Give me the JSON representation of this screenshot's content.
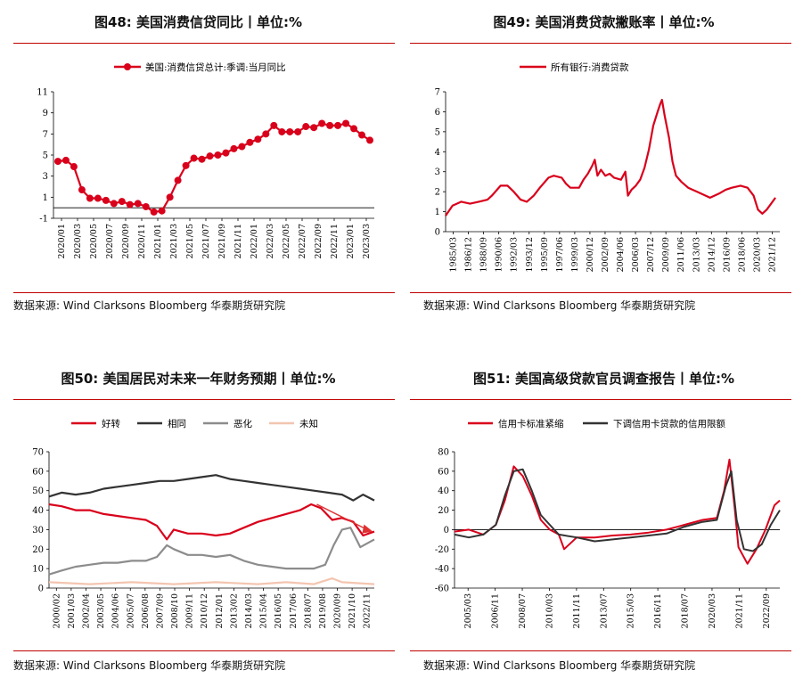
{
  "source_prefix": "数据来源:",
  "source_text": "Wind Clarksons Bloomberg 华泰期货研究院",
  "chart_data": [
    {
      "id": "fig48",
      "type": "line",
      "title": "图48:  美国消费信贷同比丨单位:%",
      "ylim": [
        -1,
        11
      ],
      "yticks": [
        -1,
        1,
        3,
        5,
        7,
        9,
        11
      ],
      "xticks": [
        "2020/01",
        "2020/03",
        "2020/05",
        "2020/07",
        "2020/09",
        "2020/11",
        "2021/01",
        "2021/03",
        "2021/05",
        "2021/07",
        "2021/09",
        "2021/11",
        "2022/01",
        "2022/03",
        "2022/05",
        "2022/07",
        "2022/09",
        "2022/11",
        "2023/01",
        "2023/03"
      ],
      "series": [
        {
          "name": "美国:消费信贷总计:季调:当月同比",
          "color": "#d9001b",
          "values": [
            4.4,
            4.5,
            3.9,
            1.7,
            0.9,
            0.9,
            0.7,
            0.4,
            0.6,
            0.3,
            0.4,
            0.1,
            -0.4,
            -0.3,
            1.0,
            2.6,
            4.0,
            4.7,
            4.6,
            4.9,
            5.0,
            5.2,
            5.6,
            5.8,
            6.2,
            6.5,
            7.0,
            7.8,
            7.2,
            7.2,
            7.2,
            7.7,
            7.6,
            8.0,
            7.8,
            7.8,
            8.0,
            7.5,
            6.9,
            6.4
          ]
        }
      ]
    },
    {
      "id": "fig49",
      "type": "line",
      "title": "图49:  美国消费贷款撇账率丨单位:%",
      "ylim": [
        0,
        7
      ],
      "yticks": [
        0,
        1,
        2,
        3,
        4,
        5,
        6,
        7
      ],
      "xticks": [
        "1985/03",
        "1986/12",
        "1988/09",
        "1990/06",
        "1992/03",
        "1993/12",
        "1995/09",
        "1997/06",
        "1999/03",
        "2000/12",
        "2002/09",
        "2004/06",
        "2006/03",
        "2007/12",
        "2009/09",
        "2011/06",
        "2013/03",
        "2014/12",
        "2016/09",
        "2018/06",
        "2020/03",
        "2021/12"
      ],
      "x_start": 1985.2,
      "x_end": 2023.5,
      "series": [
        {
          "name": "所有银行:消费贷款",
          "color": "#d9001b",
          "points": [
            [
              1985.2,
              0.8
            ],
            [
              1986.0,
              1.3
            ],
            [
              1987.0,
              1.5
            ],
            [
              1988.0,
              1.4
            ],
            [
              1989.0,
              1.5
            ],
            [
              1990.0,
              1.6
            ],
            [
              1990.5,
              1.8
            ],
            [
              1991.5,
              2.3
            ],
            [
              1992.3,
              2.3
            ],
            [
              1993.0,
              2.0
            ],
            [
              1993.8,
              1.6
            ],
            [
              1994.5,
              1.5
            ],
            [
              1995.3,
              1.8
            ],
            [
              1996.0,
              2.2
            ],
            [
              1997.0,
              2.7
            ],
            [
              1997.6,
              2.8
            ],
            [
              1998.5,
              2.7
            ],
            [
              1999.0,
              2.4
            ],
            [
              1999.5,
              2.2
            ],
            [
              2000.5,
              2.2
            ],
            [
              2001.0,
              2.6
            ],
            [
              2001.5,
              2.9
            ],
            [
              2002.0,
              3.3
            ],
            [
              2002.3,
              3.6
            ],
            [
              2002.6,
              2.8
            ],
            [
              2003.0,
              3.1
            ],
            [
              2003.5,
              2.8
            ],
            [
              2004.0,
              2.9
            ],
            [
              2004.5,
              2.7
            ],
            [
              2005.3,
              2.6
            ],
            [
              2005.8,
              3.0
            ],
            [
              2006.1,
              1.8
            ],
            [
              2006.5,
              2.1
            ],
            [
              2007.0,
              2.3
            ],
            [
              2007.5,
              2.6
            ],
            [
              2008.0,
              3.2
            ],
            [
              2008.5,
              4.1
            ],
            [
              2009.0,
              5.3
            ],
            [
              2009.5,
              6.0
            ],
            [
              2009.8,
              6.4
            ],
            [
              2010.0,
              6.6
            ],
            [
              2010.3,
              5.8
            ],
            [
              2010.8,
              4.7
            ],
            [
              2011.2,
              3.5
            ],
            [
              2011.6,
              2.8
            ],
            [
              2012.2,
              2.5
            ],
            [
              2013.0,
              2.2
            ],
            [
              2014.0,
              2.0
            ],
            [
              2015.0,
              1.8
            ],
            [
              2015.5,
              1.7
            ],
            [
              2016.5,
              1.9
            ],
            [
              2017.3,
              2.1
            ],
            [
              2018.0,
              2.2
            ],
            [
              2019.0,
              2.3
            ],
            [
              2019.8,
              2.2
            ],
            [
              2020.5,
              1.8
            ],
            [
              2021.0,
              1.1
            ],
            [
              2021.5,
              0.9
            ],
            [
              2022.0,
              1.1
            ],
            [
              2022.5,
              1.4
            ],
            [
              2023.0,
              1.7
            ]
          ]
        }
      ]
    },
    {
      "id": "fig50",
      "type": "line",
      "title": "图50:  美国居民对未来一年财务预期丨单位:%",
      "ylim": [
        0,
        70
      ],
      "yticks": [
        0,
        10,
        20,
        30,
        40,
        50,
        60,
        70
      ],
      "xticks": [
        "2000/02",
        "2001/03",
        "2002/04",
        "2003/05",
        "2004/06",
        "2005/07",
        "2006/08",
        "2007/09",
        "2008/10",
        "2009/11",
        "2010/12",
        "2012/01",
        "2013/02",
        "2014/03",
        "2015/04",
        "2016/05",
        "2017/06",
        "2018/07",
        "2019/08",
        "2020/09",
        "2021/10",
        "2022/11"
      ],
      "x_start": 2000.1,
      "x_end": 2023.3,
      "annotation": "trend-arrow",
      "series": [
        {
          "name": "好转",
          "color": "#d9001b",
          "points": [
            [
              2000.1,
              43
            ],
            [
              2001,
              42
            ],
            [
              2002,
              40
            ],
            [
              2003,
              40
            ],
            [
              2004,
              38
            ],
            [
              2005,
              37
            ],
            [
              2006,
              36
            ],
            [
              2007,
              35
            ],
            [
              2007.8,
              32
            ],
            [
              2008.5,
              25
            ],
            [
              2009,
              30
            ],
            [
              2010,
              28
            ],
            [
              2011,
              28
            ],
            [
              2012,
              27
            ],
            [
              2013,
              28
            ],
            [
              2014,
              31
            ],
            [
              2015,
              34
            ],
            [
              2016,
              36
            ],
            [
              2017,
              38
            ],
            [
              2018,
              40
            ],
            [
              2018.8,
              43
            ],
            [
              2019.5,
              41
            ],
            [
              2020.3,
              35
            ],
            [
              2021,
              36
            ],
            [
              2021.8,
              34
            ],
            [
              2022.5,
              27
            ],
            [
              2023.3,
              29
            ]
          ]
        },
        {
          "name": "相同",
          "color": "#333333",
          "points": [
            [
              2000.1,
              47
            ],
            [
              2001,
              49
            ],
            [
              2002,
              48
            ],
            [
              2003,
              49
            ],
            [
              2004,
              51
            ],
            [
              2005,
              52
            ],
            [
              2006,
              53
            ],
            [
              2007,
              54
            ],
            [
              2008,
              55
            ],
            [
              2009,
              55
            ],
            [
              2010,
              56
            ],
            [
              2011,
              57
            ],
            [
              2012,
              58
            ],
            [
              2013,
              56
            ],
            [
              2014,
              55
            ],
            [
              2015,
              54
            ],
            [
              2016,
              53
            ],
            [
              2017,
              52
            ],
            [
              2018,
              51
            ],
            [
              2019,
              50
            ],
            [
              2020,
              49
            ],
            [
              2021,
              48
            ],
            [
              2021.8,
              45
            ],
            [
              2022.5,
              48
            ],
            [
              2023.3,
              45
            ]
          ]
        },
        {
          "name": "恶化",
          "color": "#8c8c8c",
          "points": [
            [
              2000.1,
              7
            ],
            [
              2001,
              9
            ],
            [
              2002,
              11
            ],
            [
              2003,
              12
            ],
            [
              2004,
              13
            ],
            [
              2005,
              13
            ],
            [
              2006,
              14
            ],
            [
              2007,
              14
            ],
            [
              2007.8,
              16
            ],
            [
              2008.5,
              22
            ],
            [
              2009,
              20
            ],
            [
              2010,
              17
            ],
            [
              2011,
              17
            ],
            [
              2012,
              16
            ],
            [
              2013,
              17
            ],
            [
              2014,
              14
            ],
            [
              2015,
              12
            ],
            [
              2016,
              11
            ],
            [
              2017,
              10
            ],
            [
              2018,
              10
            ],
            [
              2019,
              10
            ],
            [
              2019.8,
              12
            ],
            [
              2020.4,
              22
            ],
            [
              2021,
              30
            ],
            [
              2021.6,
              31
            ],
            [
              2022.3,
              21
            ],
            [
              2023.3,
              25
            ]
          ]
        },
        {
          "name": "未知",
          "color": "#f3c5b0",
          "points": [
            [
              2000.1,
              3
            ],
            [
              2003,
              2
            ],
            [
              2006,
              3
            ],
            [
              2009,
              2
            ],
            [
              2012,
              3
            ],
            [
              2015,
              2
            ],
            [
              2017,
              3
            ],
            [
              2019,
              2
            ],
            [
              2020.3,
              5
            ],
            [
              2021,
              3
            ],
            [
              2023.3,
              2
            ]
          ]
        }
      ]
    },
    {
      "id": "fig51",
      "type": "line",
      "title": "图51:  美国高级贷款官员调查报告丨单位:%",
      "ylim": [
        -60,
        80
      ],
      "yticks": [
        -60,
        -40,
        -20,
        0,
        20,
        40,
        60,
        80
      ],
      "xticks": [
        "2005/03",
        "2006/11",
        "2008/07",
        "2010/03",
        "2011/11",
        "2013/07",
        "2015/03",
        "2016/11",
        "2018/07",
        "2020/03",
        "2021/11"
      ],
      "extra_tick": "2022/09",
      "x_start": 2005.2,
      "x_end": 2023.3,
      "series": [
        {
          "name": "信用卡标准紧缩",
          "color": "#d9001b",
          "points": [
            [
              2005.2,
              -2
            ],
            [
              2006,
              0
            ],
            [
              2006.8,
              -5
            ],
            [
              2007.5,
              5
            ],
            [
              2008.0,
              30
            ],
            [
              2008.5,
              65
            ],
            [
              2009.0,
              55
            ],
            [
              2009.5,
              35
            ],
            [
              2010.0,
              10
            ],
            [
              2010.5,
              0
            ],
            [
              2011.0,
              -5
            ],
            [
              2011.3,
              -20
            ],
            [
              2012.0,
              -8
            ],
            [
              2013.0,
              -8
            ],
            [
              2014.0,
              -6
            ],
            [
              2015.0,
              -5
            ],
            [
              2016.0,
              -3
            ],
            [
              2017.0,
              0
            ],
            [
              2018.0,
              5
            ],
            [
              2019.0,
              10
            ],
            [
              2019.8,
              12
            ],
            [
              2020.2,
              40
            ],
            [
              2020.5,
              72
            ],
            [
              2020.8,
              20
            ],
            [
              2021.0,
              -18
            ],
            [
              2021.5,
              -35
            ],
            [
              2022.0,
              -20
            ],
            [
              2022.5,
              0
            ],
            [
              2023.0,
              25
            ],
            [
              2023.3,
              30
            ]
          ]
        },
        {
          "name": "下调信用卡贷款的信用限额",
          "color": "#333333",
          "points": [
            [
              2005.2,
              -5
            ],
            [
              2006,
              -8
            ],
            [
              2006.8,
              -5
            ],
            [
              2007.5,
              5
            ],
            [
              2008.0,
              35
            ],
            [
              2008.5,
              60
            ],
            [
              2009.0,
              62
            ],
            [
              2009.5,
              40
            ],
            [
              2010.0,
              15
            ],
            [
              2010.5,
              5
            ],
            [
              2011.0,
              -5
            ],
            [
              2012.0,
              -8
            ],
            [
              2013.0,
              -12
            ],
            [
              2014.0,
              -10
            ],
            [
              2015.0,
              -8
            ],
            [
              2016.0,
              -6
            ],
            [
              2017.0,
              -4
            ],
            [
              2018.0,
              3
            ],
            [
              2019.0,
              8
            ],
            [
              2019.8,
              10
            ],
            [
              2020.3,
              45
            ],
            [
              2020.6,
              60
            ],
            [
              2020.9,
              10
            ],
            [
              2021.3,
              -20
            ],
            [
              2021.8,
              -22
            ],
            [
              2022.3,
              -15
            ],
            [
              2022.8,
              5
            ],
            [
              2023.3,
              20
            ]
          ]
        }
      ]
    }
  ]
}
